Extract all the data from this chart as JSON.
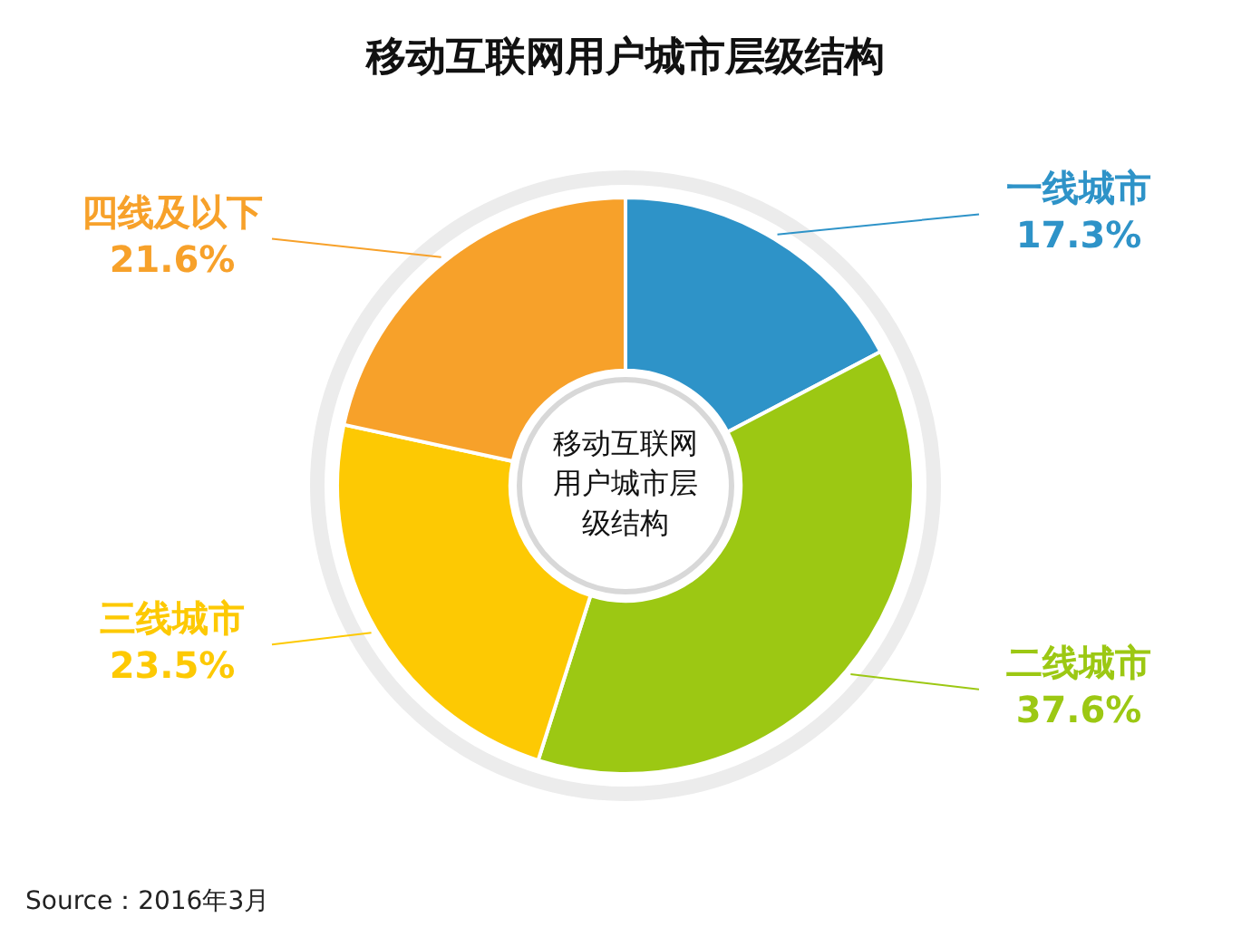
{
  "chart_data": {
    "type": "donut",
    "title": "移动互联网用户城市层级结构",
    "categories": [
      "一线城市",
      "二线城市",
      "三线城市",
      "四线及以下"
    ],
    "values": [
      17.3,
      37.6,
      23.5,
      21.6
    ],
    "colors": [
      "#2e93c8",
      "#9cc813",
      "#fdc903",
      "#f7a12a"
    ],
    "value_labels": [
      "17.3%",
      "37.6%",
      "23.5%",
      "21.6%"
    ],
    "legend": false,
    "annotations": [
      "移动互联网用户城市层级结构",
      "Source：2016年3月"
    ]
  }
}
